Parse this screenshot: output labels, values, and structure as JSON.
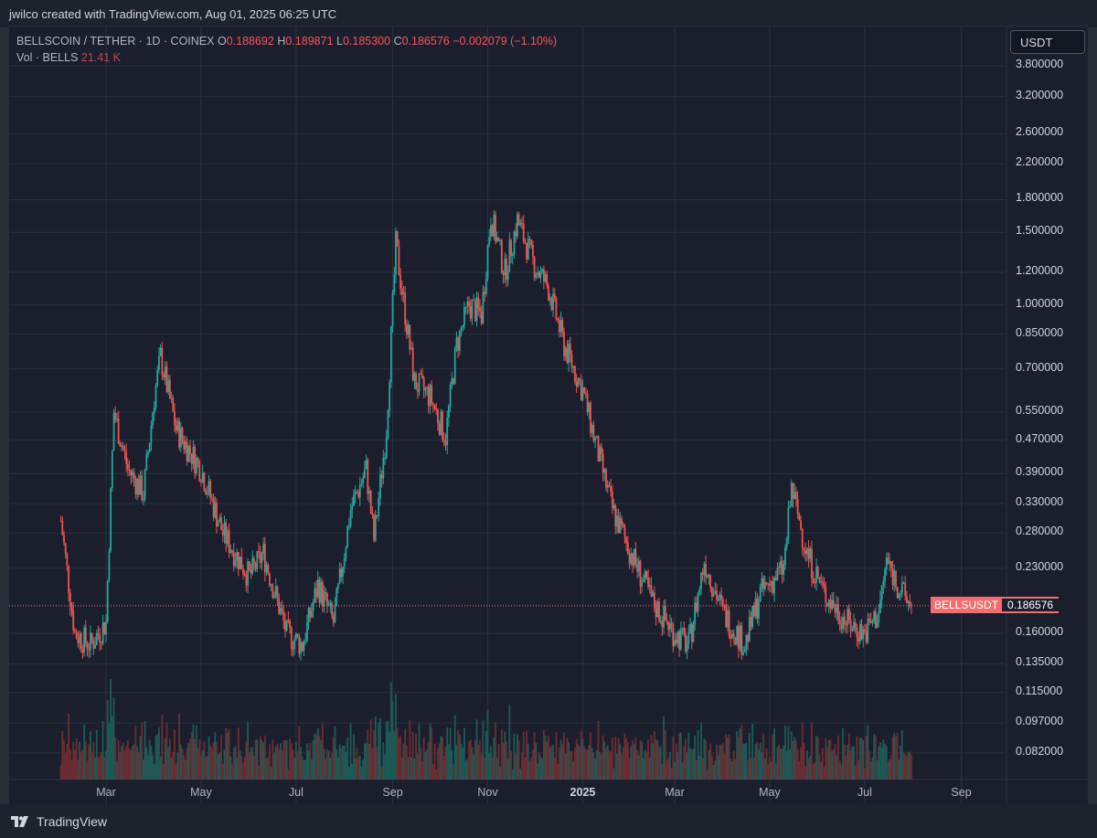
{
  "header": {
    "credit": "jwilco created with TradingView.com, Aug 01, 2025 06:25 UTC"
  },
  "footer": {
    "brand": "TradingView"
  },
  "legend": {
    "symbol": "BELLSCOIN / TETHER · 1D · COINEX",
    "o_label": "O",
    "o_value": "0.188692",
    "h_label": "H",
    "h_value": "0.189871",
    "l_label": "L",
    "l_value": "0.185300",
    "c_label": "C",
    "c_value": "0.186576",
    "change": "−0.002079 (−1.10%)",
    "vol_label": "Vol · BELLS",
    "vol_value": "21.41 K"
  },
  "currency": "USDT",
  "price_tag": {
    "symbol": "BELLSUSDT",
    "price": "0.186576"
  },
  "colors": {
    "up": "#26a69a",
    "down": "#ef5350",
    "background": "#1b1f2d",
    "grid": "#2b3040",
    "price_line": "#f26d6d"
  },
  "chart_data": {
    "type": "candlestick",
    "y_scale": "log",
    "y_ticks": [
      "3.800000",
      "3.200000",
      "2.600000",
      "2.200000",
      "1.800000",
      "1.500000",
      "1.200000",
      "1.000000",
      "0.850000",
      "0.700000",
      "0.550000",
      "0.470000",
      "0.390000",
      "0.330000",
      "0.280000",
      "0.230000",
      "0.160000",
      "0.135000",
      "0.115000",
      "0.097000",
      "0.082000"
    ],
    "x_ticks": [
      "Mar",
      "May",
      "Jul",
      "Sep",
      "Nov",
      "2025",
      "Mar",
      "May",
      "Jul",
      "Sep"
    ],
    "last_price": 0.186576,
    "approx_close_path": [
      {
        "date": "2024-02-01",
        "close": 0.3
      },
      {
        "date": "2024-02-10",
        "close": 0.16
      },
      {
        "date": "2024-02-20",
        "close": 0.15
      },
      {
        "date": "2024-03-01",
        "close": 0.17
      },
      {
        "date": "2024-03-06",
        "close": 0.55
      },
      {
        "date": "2024-03-15",
        "close": 0.4
      },
      {
        "date": "2024-03-25",
        "close": 0.35
      },
      {
        "date": "2024-04-01",
        "close": 0.6
      },
      {
        "date": "2024-04-05",
        "close": 0.75
      },
      {
        "date": "2024-04-15",
        "close": 0.5
      },
      {
        "date": "2024-05-01",
        "close": 0.4
      },
      {
        "date": "2024-05-15",
        "close": 0.28
      },
      {
        "date": "2024-06-01",
        "close": 0.22
      },
      {
        "date": "2024-06-10",
        "close": 0.25
      },
      {
        "date": "2024-06-25",
        "close": 0.16
      },
      {
        "date": "2024-07-05",
        "close": 0.15
      },
      {
        "date": "2024-07-15",
        "close": 0.21
      },
      {
        "date": "2024-07-25",
        "close": 0.17
      },
      {
        "date": "2024-08-05",
        "close": 0.32
      },
      {
        "date": "2024-08-15",
        "close": 0.4
      },
      {
        "date": "2024-08-20",
        "close": 0.27
      },
      {
        "date": "2024-08-28",
        "close": 0.5
      },
      {
        "date": "2024-09-03",
        "close": 1.4
      },
      {
        "date": "2024-09-10",
        "close": 0.9
      },
      {
        "date": "2024-09-15",
        "close": 0.65
      },
      {
        "date": "2024-09-25",
        "close": 0.6
      },
      {
        "date": "2024-10-05",
        "close": 0.48
      },
      {
        "date": "2024-10-12",
        "close": 0.8
      },
      {
        "date": "2024-10-20",
        "close": 1.0
      },
      {
        "date": "2024-10-28",
        "close": 0.95
      },
      {
        "date": "2024-11-03",
        "close": 1.65
      },
      {
        "date": "2024-11-12",
        "close": 1.2
      },
      {
        "date": "2024-11-20",
        "close": 1.6
      },
      {
        "date": "2024-12-01",
        "close": 1.25
      },
      {
        "date": "2024-12-10",
        "close": 1.1
      },
      {
        "date": "2024-12-20",
        "close": 0.8
      },
      {
        "date": "2025-01-01",
        "close": 0.62
      },
      {
        "date": "2025-01-10",
        "close": 0.45
      },
      {
        "date": "2025-01-20",
        "close": 0.32
      },
      {
        "date": "2025-02-01",
        "close": 0.25
      },
      {
        "date": "2025-02-15",
        "close": 0.19
      },
      {
        "date": "2025-03-01",
        "close": 0.16
      },
      {
        "date": "2025-03-10",
        "close": 0.15
      },
      {
        "date": "2025-03-20",
        "close": 0.24
      },
      {
        "date": "2025-04-01",
        "close": 0.18
      },
      {
        "date": "2025-04-15",
        "close": 0.15
      },
      {
        "date": "2025-04-25",
        "close": 0.2
      },
      {
        "date": "2025-05-10",
        "close": 0.23
      },
      {
        "date": "2025-05-15",
        "close": 0.36
      },
      {
        "date": "2025-05-25",
        "close": 0.25
      },
      {
        "date": "2025-06-05",
        "close": 0.2
      },
      {
        "date": "2025-06-20",
        "close": 0.17
      },
      {
        "date": "2025-07-01",
        "close": 0.16
      },
      {
        "date": "2025-07-10",
        "close": 0.18
      },
      {
        "date": "2025-07-15",
        "close": 0.24
      },
      {
        "date": "2025-07-25",
        "close": 0.2
      },
      {
        "date": "2025-07-31",
        "close": 0.186576
      }
    ]
  }
}
